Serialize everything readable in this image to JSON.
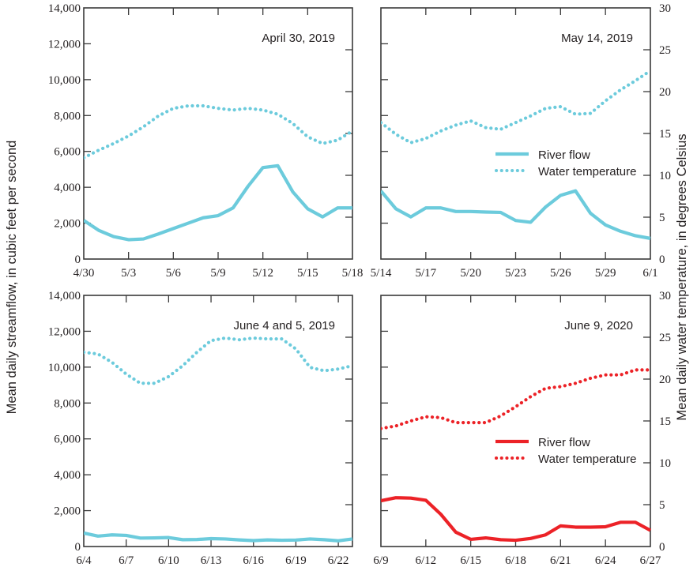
{
  "chart_data": {
    "type": "line",
    "left_axis_label": "Mean daily streamflow, in cubic feet per second",
    "right_axis_label": "Mean daily water temperature, in degrees Celsius",
    "left_ylim": [
      0,
      14000
    ],
    "left_yticks": [
      "0",
      "2,000",
      "4,000",
      "6,000",
      "8,000",
      "10,000",
      "12,000",
      "14,000"
    ],
    "left_ytick_values": [
      0,
      2000,
      4000,
      6000,
      8000,
      10000,
      12000,
      14000
    ],
    "right_ylim": [
      0,
      30
    ],
    "right_yticks": [
      "0",
      "5",
      "10",
      "15",
      "20",
      "25",
      "30"
    ],
    "right_ytick_values": [
      0,
      5,
      10,
      15,
      20,
      25,
      30
    ],
    "legend": {
      "flow_label": "River flow",
      "temp_label": "Water temperature"
    },
    "panels": [
      {
        "title": "April 30, 2019",
        "color": "#6ccbdc",
        "days": 18,
        "xticks": [
          "4/30",
          "5/3",
          "5/6",
          "5/9",
          "5/12",
          "5/15",
          "5/18"
        ],
        "xtick_days": [
          0,
          3,
          6,
          9,
          12,
          15,
          18
        ],
        "show_legend": false,
        "flow": [
          2150,
          1600,
          1250,
          1080,
          1120,
          1400,
          1700,
          2000,
          2300,
          2420,
          2850,
          4050,
          5100,
          5200,
          3750,
          2800,
          2350,
          2850,
          2850
        ],
        "temperature": [
          12.1,
          13.0,
          13.8,
          14.7,
          15.8,
          17.1,
          18.0,
          18.3,
          18.3,
          18.0,
          17.8,
          18.0,
          17.8,
          17.3,
          16.2,
          14.6,
          13.8,
          14.2,
          15.3
        ]
      },
      {
        "title": "May 14, 2019",
        "color": "#6ccbdc",
        "days": 18,
        "xticks": [
          "5/14",
          "5/17",
          "5/20",
          "5/23",
          "5/26",
          "5/29",
          "6/1"
        ],
        "xtick_days": [
          0,
          3,
          6,
          9,
          12,
          15,
          18
        ],
        "show_legend": true,
        "flow": [
          3800,
          2800,
          2350,
          2850,
          2850,
          2650,
          2650,
          2620,
          2600,
          2150,
          2050,
          2900,
          3550,
          3800,
          2550,
          1900,
          1550,
          1300,
          1150
        ],
        "temperature": [
          16.3,
          14.9,
          13.9,
          14.4,
          15.3,
          16.0,
          16.5,
          15.7,
          15.5,
          16.3,
          17.1,
          18.0,
          18.2,
          17.3,
          17.4,
          18.9,
          20.2,
          21.3,
          22.5
        ]
      },
      {
        "title": "June 4 and 5, 2019",
        "color": "#6ccbdc",
        "days": 19,
        "xticks": [
          "6/4",
          "6/7",
          "6/10",
          "6/13",
          "6/16",
          "6/19",
          "6/22"
        ],
        "xtick_days": [
          0,
          3,
          6,
          9,
          12,
          15,
          18
        ],
        "show_legend": false,
        "flow": [
          750,
          580,
          650,
          620,
          470,
          480,
          500,
          380,
          390,
          440,
          420,
          370,
          330,
          370,
          350,
          360,
          420,
          380,
          320,
          420
        ],
        "temperature": [
          23.2,
          23.0,
          22.0,
          20.6,
          19.5,
          19.5,
          20.3,
          21.6,
          23.2,
          24.6,
          24.9,
          24.7,
          24.9,
          24.8,
          24.8,
          23.6,
          21.4,
          21.0,
          21.2,
          21.6
        ]
      },
      {
        "title": "June 9, 2020",
        "color": "#ec2227",
        "days": 18,
        "xticks": [
          "6/9",
          "6/12",
          "6/15",
          "6/18",
          "6/21",
          "6/24",
          "6/27"
        ],
        "xtick_days": [
          0,
          3,
          6,
          9,
          12,
          15,
          18
        ],
        "show_legend": true,
        "flow": [
          2550,
          2720,
          2700,
          2580,
          1800,
          800,
          400,
          480,
          380,
          350,
          450,
          650,
          1150,
          1080,
          1080,
          1100,
          1350,
          1350,
          900
        ],
        "temperature": [
          14.1,
          14.4,
          15.0,
          15.5,
          15.4,
          14.8,
          14.8,
          14.8,
          15.6,
          16.7,
          17.9,
          18.9,
          19.1,
          19.5,
          20.1,
          20.5,
          20.5,
          21.1,
          21.1
        ]
      }
    ]
  }
}
